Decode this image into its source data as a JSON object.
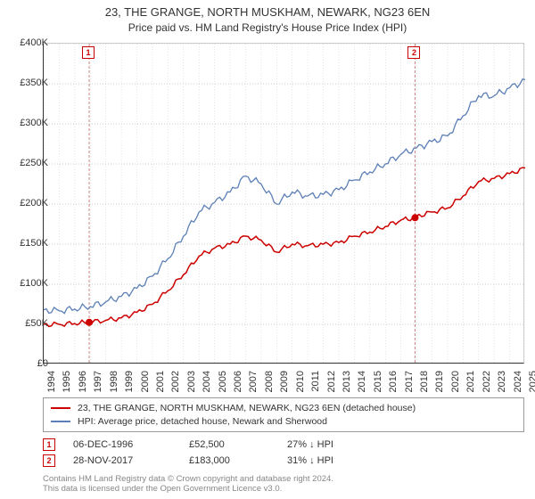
{
  "title": "23, THE GRANGE, NORTH MUSKHAM, NEWARK, NG23 6EN",
  "subtitle": "Price paid vs. HM Land Registry's House Price Index (HPI)",
  "chart": {
    "type": "line",
    "background_color": "#ffffff",
    "grid_color": "#cccccc",
    "axis_color": "#333333",
    "title_fontsize": 13,
    "label_fontsize": 11,
    "ylabel_prefix": "£",
    "ylim": [
      0,
      400000
    ],
    "ytick_step": 50000,
    "yticks": [
      "£0",
      "£50K",
      "£100K",
      "£150K",
      "£200K",
      "£250K",
      "£300K",
      "£350K",
      "£400K"
    ],
    "xlim": [
      1994,
      2025
    ],
    "xticks": [
      1994,
      1995,
      1996,
      1997,
      1998,
      1999,
      2000,
      2001,
      2002,
      2003,
      2004,
      2005,
      2006,
      2007,
      2008,
      2009,
      2010,
      2011,
      2012,
      2013,
      2014,
      2015,
      2016,
      2017,
      2018,
      2019,
      2020,
      2021,
      2022,
      2023,
      2024,
      2025
    ],
    "series": [
      {
        "id": "property",
        "label": "23, THE GRANGE, NORTH MUSKHAM, NEWARK, NG23 6EN (detached house)",
        "color": "#cc0000",
        "width": 1.5,
        "data": [
          [
            1994,
            50000
          ],
          [
            1995,
            50000
          ],
          [
            1996,
            51000
          ],
          [
            1996.93,
            52500
          ],
          [
            1998,
            55000
          ],
          [
            1999,
            58000
          ],
          [
            2000,
            65000
          ],
          [
            2001,
            75000
          ],
          [
            2002,
            92000
          ],
          [
            2003,
            112000
          ],
          [
            2004,
            135000
          ],
          [
            2005,
            145000
          ],
          [
            2006,
            150000
          ],
          [
            2007,
            160000
          ],
          [
            2008,
            155000
          ],
          [
            2009,
            140000
          ],
          [
            2010,
            150000
          ],
          [
            2011,
            148000
          ],
          [
            2012,
            150000
          ],
          [
            2013,
            152000
          ],
          [
            2014,
            160000
          ],
          [
            2015,
            165000
          ],
          [
            2016,
            172000
          ],
          [
            2017,
            180000
          ],
          [
            2017.91,
            183000
          ],
          [
            2018,
            185000
          ],
          [
            2019,
            190000
          ],
          [
            2020,
            195000
          ],
          [
            2021,
            210000
          ],
          [
            2022,
            228000
          ],
          [
            2023,
            232000
          ],
          [
            2024,
            238000
          ],
          [
            2025,
            245000
          ]
        ]
      },
      {
        "id": "hpi",
        "label": "HPI: Average price, detached house, Newark and Sherwood",
        "color": "#5b7fb6",
        "width": 1.3,
        "data": [
          [
            1994,
            68000
          ],
          [
            1995,
            67000
          ],
          [
            1996,
            69000
          ],
          [
            1997,
            72000
          ],
          [
            1998,
            78000
          ],
          [
            1999,
            85000
          ],
          [
            2000,
            95000
          ],
          [
            2001,
            110000
          ],
          [
            2002,
            132000
          ],
          [
            2003,
            160000
          ],
          [
            2004,
            190000
          ],
          [
            2005,
            202000
          ],
          [
            2006,
            215000
          ],
          [
            2007,
            235000
          ],
          [
            2008,
            225000
          ],
          [
            2009,
            200000
          ],
          [
            2010,
            215000
          ],
          [
            2011,
            210000
          ],
          [
            2012,
            212000
          ],
          [
            2013,
            218000
          ],
          [
            2014,
            230000
          ],
          [
            2015,
            240000
          ],
          [
            2016,
            250000
          ],
          [
            2017,
            262000
          ],
          [
            2018,
            270000
          ],
          [
            2019,
            278000
          ],
          [
            2020,
            285000
          ],
          [
            2021,
            310000
          ],
          [
            2022,
            335000
          ],
          [
            2023,
            335000
          ],
          [
            2024,
            345000
          ],
          [
            2025,
            355000
          ]
        ]
      }
    ],
    "markers": [
      {
        "n": "1",
        "year": 1996.93,
        "price": 52500
      },
      {
        "n": "2",
        "year": 2017.91,
        "price": 183000
      }
    ]
  },
  "legend": {
    "border_color": "#999999",
    "fontsize": 10.5
  },
  "sales": [
    {
      "n": "1",
      "date": "06-DEC-1996",
      "price": "£52,500",
      "delta": "27% ↓ HPI"
    },
    {
      "n": "2",
      "date": "28-NOV-2017",
      "price": "£183,000",
      "delta": "31% ↓ HPI"
    }
  ],
  "footnote": {
    "line1": "Contains HM Land Registry data © Crown copyright and database right 2024.",
    "line2": "This data is licensed under the Open Government Licence v3.0.",
    "color": "#888888",
    "fontsize": 9.5
  },
  "marker_style": {
    "box_border": "#cc0000",
    "box_text": "#cc0000",
    "dot_color": "#cc0000",
    "line_color": "#cc8888"
  }
}
